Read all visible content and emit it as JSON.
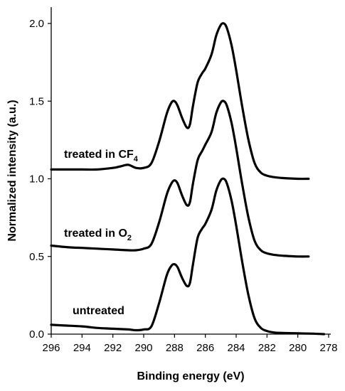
{
  "chart_data": {
    "type": "line",
    "title": "",
    "xlabel": "Binding energy (eV)",
    "ylabel": "Normalized intensity (a.u.)",
    "xlim": [
      296,
      278
    ],
    "ylim": [
      0.0,
      2.0
    ],
    "x_reversed": true,
    "xticks": [
      "296",
      "294",
      "292",
      "290",
      "288",
      "286",
      "284",
      "282",
      "280",
      "278"
    ],
    "yticks": [
      "0.0",
      "0.5",
      "1.0",
      "1.5",
      "2.0"
    ],
    "grid": false,
    "legend": "none",
    "series": [
      {
        "name": "untreated",
        "x": [
          296,
          295,
          294,
          293,
          292,
          291,
          290.5,
          290,
          289.5,
          289,
          288.5,
          288.2,
          288,
          287.8,
          287.5,
          287.2,
          287,
          286.8,
          286.5,
          286.2,
          286,
          285.6,
          285.3,
          285,
          284.8,
          284.6,
          284.3,
          284,
          283.6,
          283.2,
          282.8,
          282.4,
          282,
          281.5,
          281,
          280,
          279,
          278.3
        ],
        "values": [
          0.06,
          0.055,
          0.05,
          0.04,
          0.035,
          0.03,
          0.025,
          0.03,
          0.05,
          0.2,
          0.38,
          0.44,
          0.45,
          0.43,
          0.36,
          0.31,
          0.33,
          0.45,
          0.62,
          0.68,
          0.71,
          0.8,
          0.92,
          0.99,
          1.0,
          0.97,
          0.86,
          0.7,
          0.46,
          0.25,
          0.1,
          0.04,
          0.02,
          0.01,
          0.008,
          0.005,
          0.003,
          0.0
        ]
      },
      {
        "name": "treated in O2",
        "x": [
          296,
          295,
          294,
          293,
          292,
          291,
          290.5,
          290,
          289.5,
          289,
          288.5,
          288.2,
          288,
          287.8,
          287.5,
          287.2,
          287,
          286.8,
          286.5,
          286.2,
          286,
          285.6,
          285.3,
          285,
          284.8,
          284.6,
          284.3,
          284,
          283.6,
          283.2,
          282.8,
          282.4,
          282,
          281.5,
          281,
          280,
          279.3
        ],
        "values": [
          0.57,
          0.56,
          0.555,
          0.55,
          0.545,
          0.54,
          0.54,
          0.55,
          0.58,
          0.72,
          0.9,
          0.97,
          0.99,
          0.97,
          0.89,
          0.83,
          0.85,
          0.97,
          1.12,
          1.18,
          1.22,
          1.3,
          1.42,
          1.49,
          1.5,
          1.47,
          1.36,
          1.2,
          0.96,
          0.75,
          0.6,
          0.54,
          0.52,
          0.51,
          0.505,
          0.5,
          0.5
        ]
      },
      {
        "name": "treated in CF4",
        "x": [
          296,
          295,
          294,
          293,
          292,
          291.5,
          291,
          290.5,
          290,
          289.5,
          289,
          288.5,
          288.2,
          288,
          287.8,
          287.5,
          287.2,
          287,
          286.8,
          286.5,
          286.2,
          286,
          285.6,
          285.3,
          285,
          284.8,
          284.6,
          284.3,
          284,
          283.6,
          283.2,
          282.8,
          282.4,
          282,
          281.5,
          281,
          280,
          279.3
        ],
        "values": [
          1.06,
          1.06,
          1.06,
          1.06,
          1.07,
          1.08,
          1.09,
          1.07,
          1.07,
          1.1,
          1.24,
          1.42,
          1.49,
          1.5,
          1.47,
          1.39,
          1.33,
          1.35,
          1.47,
          1.62,
          1.68,
          1.71,
          1.8,
          1.92,
          1.99,
          2.0,
          1.97,
          1.86,
          1.7,
          1.46,
          1.25,
          1.1,
          1.04,
          1.02,
          1.01,
          1.005,
          1.0,
          1.0
        ]
      }
    ],
    "annotations": [
      {
        "text": "treated in CF",
        "sub": "4",
        "series": "treated in CF4"
      },
      {
        "text": "treated in O",
        "sub": "2",
        "series": "treated in O2"
      },
      {
        "text": "untreated",
        "sub": "",
        "series": "untreated"
      }
    ]
  }
}
